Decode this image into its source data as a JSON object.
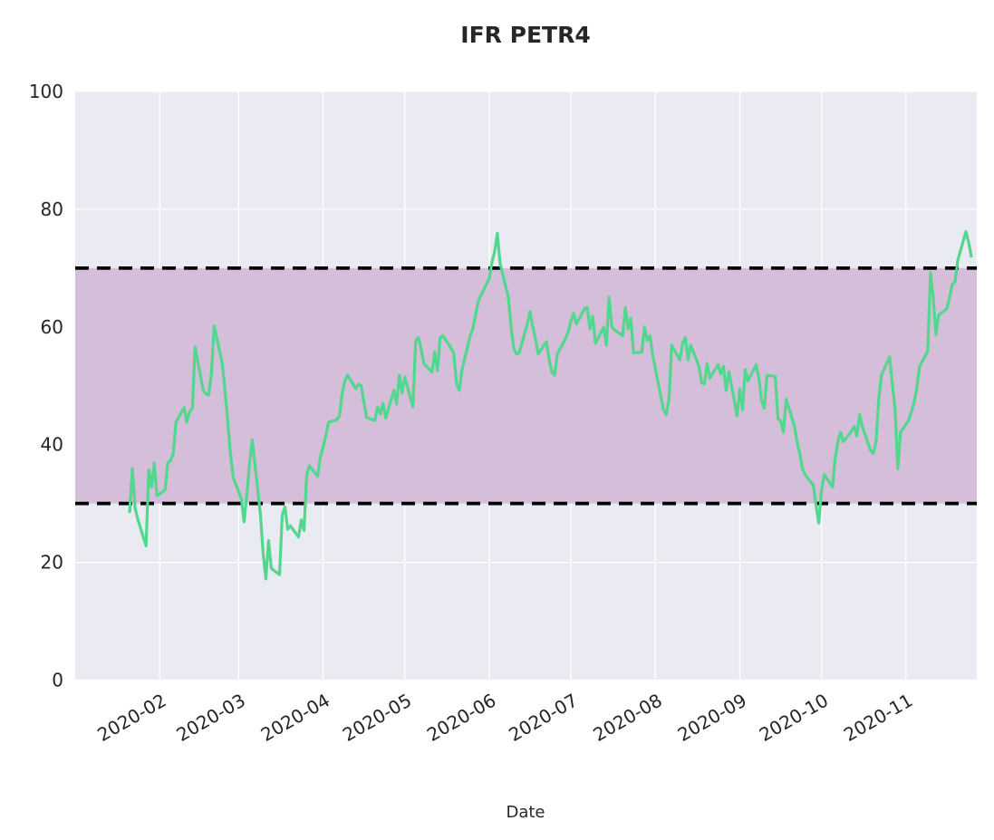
{
  "chart": {
    "title": "IFR PETR4",
    "xlabel": "Date"
  },
  "chart_data": {
    "type": "line",
    "title": "IFR PETR4",
    "xlabel": "Date",
    "ylabel": "",
    "ylim": [
      0,
      100
    ],
    "x_range": [
      "2020-01-01",
      "2020-11-27"
    ],
    "y_ticks": [
      0,
      20,
      40,
      60,
      80,
      100
    ],
    "x_ticks": [
      {
        "label": "2020-02",
        "date": "2020-02-01"
      },
      {
        "label": "2020-03",
        "date": "2020-03-01"
      },
      {
        "label": "2020-04",
        "date": "2020-04-01"
      },
      {
        "label": "2020-05",
        "date": "2020-05-01"
      },
      {
        "label": "2020-06",
        "date": "2020-06-01"
      },
      {
        "label": "2020-07",
        "date": "2020-07-01"
      },
      {
        "label": "2020-08",
        "date": "2020-08-01"
      },
      {
        "label": "2020-09",
        "date": "2020-09-01"
      },
      {
        "label": "2020-10",
        "date": "2020-10-01"
      },
      {
        "label": "2020-11",
        "date": "2020-11-01"
      }
    ],
    "grid": true,
    "legend": "none",
    "hlines": {
      "values": [
        70,
        30
      ],
      "style": "dashed",
      "color": "#000000"
    },
    "band": {
      "from": 30,
      "to": 70,
      "color": "#d4bed9"
    },
    "plot_bg": "#eaeaf2",
    "grid_color": "#ffffff",
    "line_color": "#52d78e",
    "series": [
      {
        "name": "IFR",
        "dates": [
          "2020-01-21",
          "2020-01-22",
          "2020-01-23",
          "2020-01-24",
          "2020-01-27",
          "2020-01-28",
          "2020-01-29",
          "2020-01-30",
          "2020-01-31",
          "2020-02-03",
          "2020-02-04",
          "2020-02-05",
          "2020-02-06",
          "2020-02-07",
          "2020-02-10",
          "2020-02-11",
          "2020-02-12",
          "2020-02-13",
          "2020-02-14",
          "2020-02-17",
          "2020-02-18",
          "2020-02-19",
          "2020-02-20",
          "2020-02-21",
          "2020-02-24",
          "2020-02-25",
          "2020-02-26",
          "2020-02-27",
          "2020-02-28",
          "2020-03-02",
          "2020-03-03",
          "2020-03-04",
          "2020-03-05",
          "2020-03-06",
          "2020-03-09",
          "2020-03-10",
          "2020-03-11",
          "2020-03-12",
          "2020-03-13",
          "2020-03-16",
          "2020-03-17",
          "2020-03-18",
          "2020-03-19",
          "2020-03-20",
          "2020-03-23",
          "2020-03-24",
          "2020-03-25",
          "2020-03-26",
          "2020-03-27",
          "2020-03-30",
          "2020-03-31",
          "2020-04-01",
          "2020-04-02",
          "2020-04-03",
          "2020-04-06",
          "2020-04-07",
          "2020-04-08",
          "2020-04-09",
          "2020-04-10",
          "2020-04-13",
          "2020-04-14",
          "2020-04-15",
          "2020-04-16",
          "2020-04-17",
          "2020-04-20",
          "2020-04-21",
          "2020-04-22",
          "2020-04-23",
          "2020-04-24",
          "2020-04-27",
          "2020-04-28",
          "2020-04-29",
          "2020-04-30",
          "2020-05-01",
          "2020-05-04",
          "2020-05-05",
          "2020-05-06",
          "2020-05-07",
          "2020-05-08",
          "2020-05-11",
          "2020-05-12",
          "2020-05-13",
          "2020-05-14",
          "2020-05-15",
          "2020-05-18",
          "2020-05-19",
          "2020-05-20",
          "2020-05-21",
          "2020-05-22",
          "2020-05-25",
          "2020-05-26",
          "2020-05-27",
          "2020-05-28",
          "2020-05-29",
          "2020-06-01",
          "2020-06-02",
          "2020-06-03",
          "2020-06-04",
          "2020-06-05",
          "2020-06-08",
          "2020-06-09",
          "2020-06-10",
          "2020-06-11",
          "2020-06-12",
          "2020-06-15",
          "2020-06-16",
          "2020-06-17",
          "2020-06-18",
          "2020-06-19",
          "2020-06-22",
          "2020-06-23",
          "2020-06-24",
          "2020-06-25",
          "2020-06-26",
          "2020-06-29",
          "2020-06-30",
          "2020-07-01",
          "2020-07-02",
          "2020-07-03",
          "2020-07-06",
          "2020-07-07",
          "2020-07-08",
          "2020-07-09",
          "2020-07-10",
          "2020-07-13",
          "2020-07-14",
          "2020-07-15",
          "2020-07-16",
          "2020-07-17",
          "2020-07-20",
          "2020-07-21",
          "2020-07-22",
          "2020-07-23",
          "2020-07-24",
          "2020-07-27",
          "2020-07-28",
          "2020-07-29",
          "2020-07-30",
          "2020-07-31",
          "2020-08-03",
          "2020-08-04",
          "2020-08-05",
          "2020-08-06",
          "2020-08-07",
          "2020-08-10",
          "2020-08-11",
          "2020-08-12",
          "2020-08-13",
          "2020-08-14",
          "2020-08-17",
          "2020-08-18",
          "2020-08-19",
          "2020-08-20",
          "2020-08-21",
          "2020-08-24",
          "2020-08-25",
          "2020-08-26",
          "2020-08-27",
          "2020-08-28",
          "2020-08-31",
          "2020-09-01",
          "2020-09-02",
          "2020-09-03",
          "2020-09-04",
          "2020-09-07",
          "2020-09-08",
          "2020-09-09",
          "2020-09-10",
          "2020-09-11",
          "2020-09-14",
          "2020-09-15",
          "2020-09-16",
          "2020-09-17",
          "2020-09-18",
          "2020-09-21",
          "2020-09-22",
          "2020-09-23",
          "2020-09-24",
          "2020-09-25",
          "2020-09-28",
          "2020-09-29",
          "2020-09-30",
          "2020-10-01",
          "2020-10-02",
          "2020-10-05",
          "2020-10-06",
          "2020-10-07",
          "2020-10-08",
          "2020-10-09",
          "2020-10-12",
          "2020-10-13",
          "2020-10-14",
          "2020-10-15",
          "2020-10-16",
          "2020-10-19",
          "2020-10-20",
          "2020-10-21",
          "2020-10-22",
          "2020-10-23",
          "2020-10-26",
          "2020-10-27",
          "2020-10-28",
          "2020-10-29",
          "2020-10-30",
          "2020-11-02",
          "2020-11-03",
          "2020-11-04",
          "2020-11-05",
          "2020-11-06",
          "2020-11-09",
          "2020-11-10",
          "2020-11-11",
          "2020-11-12",
          "2020-11-13",
          "2020-11-16",
          "2020-11-17",
          "2020-11-18",
          "2020-11-19",
          "2020-11-20",
          "2020-11-23",
          "2020-11-24",
          "2020-11-25"
        ],
        "values": [
          28.6,
          35.9,
          29.2,
          27.3,
          22.8,
          35.7,
          32.8,
          36.9,
          31.3,
          32.3,
          36.9,
          37.3,
          38.5,
          43.8,
          46.3,
          43.8,
          45.6,
          46.2,
          56.6,
          49.2,
          48.6,
          48.4,
          52.0,
          60.2,
          53.8,
          49.2,
          44.1,
          38.5,
          34.4,
          30.8,
          26.9,
          31.5,
          36.7,
          40.8,
          28.2,
          21.5,
          17.2,
          23.7,
          19.0,
          17.9,
          28.0,
          29.4,
          25.6,
          26.2,
          24.3,
          27.2,
          25.4,
          34.9,
          36.4,
          34.6,
          37.9,
          39.5,
          41.5,
          43.8,
          44.2,
          44.9,
          48.7,
          50.8,
          51.8,
          49.5,
          50.3,
          50.0,
          47.2,
          44.6,
          44.1,
          46.4,
          45.2,
          47.0,
          44.5,
          49.2,
          46.9,
          51.8,
          48.8,
          51.5,
          46.4,
          57.7,
          58.2,
          56.2,
          53.8,
          52.3,
          55.8,
          52.6,
          58.2,
          58.5,
          56.4,
          55.5,
          50.3,
          49.2,
          52.7,
          58.5,
          59.7,
          62.1,
          64.4,
          65.4,
          68.2,
          71.0,
          72.8,
          75.9,
          70.8,
          65.1,
          60.0,
          56.4,
          55.4,
          55.6,
          60.5,
          62.6,
          60.0,
          57.9,
          55.4,
          57.5,
          54.4,
          52.3,
          51.8,
          55.4,
          58.0,
          59.2,
          61.0,
          62.3,
          60.5,
          63.1,
          63.3,
          59.7,
          61.8,
          57.2,
          60.0,
          56.9,
          65.1,
          60.0,
          59.5,
          58.5,
          63.3,
          59.7,
          61.5,
          55.6,
          55.7,
          60.0,
          57.7,
          58.5,
          55.2,
          48.2,
          45.9,
          45.1,
          47.7,
          56.9,
          54.4,
          57.2,
          58.2,
          54.4,
          56.9,
          53.3,
          50.5,
          50.3,
          53.8,
          51.3,
          53.6,
          52.0,
          53.3,
          49.2,
          52.4,
          44.9,
          49.5,
          45.9,
          52.8,
          50.8,
          53.6,
          51.3,
          47.4,
          46.2,
          51.8,
          51.6,
          44.4,
          44.0,
          42.1,
          47.7,
          43.3,
          40.5,
          38.5,
          35.9,
          34.9,
          33.1,
          29.7,
          26.7,
          32.3,
          34.9,
          32.8,
          37.7,
          40.5,
          42.1,
          40.5,
          42.3,
          43.1,
          41.5,
          45.1,
          43.1,
          39.0,
          38.5,
          40.5,
          47.7,
          51.8,
          54.9,
          50.3,
          46.2,
          35.9,
          42.1,
          44.1,
          45.6,
          47.2,
          49.7,
          53.3,
          55.9,
          69.2,
          65.1,
          58.7,
          62.0,
          63.1,
          64.9,
          67.2,
          67.7,
          71.3,
          76.2,
          74.4,
          72.0
        ]
      }
    ]
  }
}
